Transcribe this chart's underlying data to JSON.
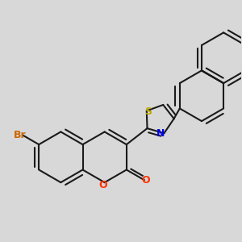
{
  "background_color": "#d8d8d8",
  "bond_color": "#1a1a1a",
  "bond_width": 1.5,
  "N_color": "#0000ee",
  "S_color": "#bbaa00",
  "O_color": "#ff3300",
  "Br_color": "#cc6600",
  "figsize": [
    3.0,
    3.0
  ],
  "dpi": 100,
  "xlim": [
    0.0,
    10.0
  ],
  "ylim": [
    0.0,
    10.0
  ]
}
